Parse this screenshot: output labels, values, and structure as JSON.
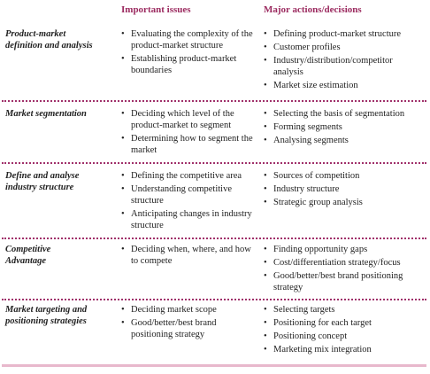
{
  "header": {
    "columns": [
      "Important issues",
      "Major actions/decisions"
    ]
  },
  "rows": [
    {
      "label": [
        "Product-market",
        "definition and analysis"
      ],
      "issues": [
        "Evaluating the complexity of the product-market structure",
        "Establishing product-market boundaries"
      ],
      "actions": [
        "Defining product-market structure",
        "Customer profiles",
        "Industry/distribution/competitor analysis",
        "Market size estimation"
      ]
    },
    {
      "label": [
        "Market segmentation"
      ],
      "issues": [
        "Deciding which level of the product-market to segment",
        "Determining how to segment the market"
      ],
      "actions": [
        "Selecting the basis of segmentation",
        "Forming segments",
        "Analysing segments"
      ]
    },
    {
      "label": [
        "Define and analyse",
        "industry structure"
      ],
      "issues": [
        "Defining the competitive area",
        "Understanding competitive structure",
        "Anticipating changes in industry structure"
      ],
      "actions": [
        "Sources of competition",
        "Industry structure",
        "Strategic group analysis"
      ]
    },
    {
      "label": [
        "Competitive",
        "Advantage"
      ],
      "issues": [
        "Deciding when, where, and how to compete"
      ],
      "actions": [
        "Finding opportunity gaps",
        "Cost/differentiation strategy/focus",
        "Good/better/best brand positioning strategy"
      ]
    },
    {
      "label": [
        "Market targeting and",
        "positioning strategies"
      ],
      "issues": [
        "Deciding market scope",
        "Good/better/best brand positioning strategy"
      ],
      "actions": [
        "Selecting targets",
        "Positioning for each target",
        "Positioning concept",
        "Marketing mix integration"
      ]
    }
  ]
}
